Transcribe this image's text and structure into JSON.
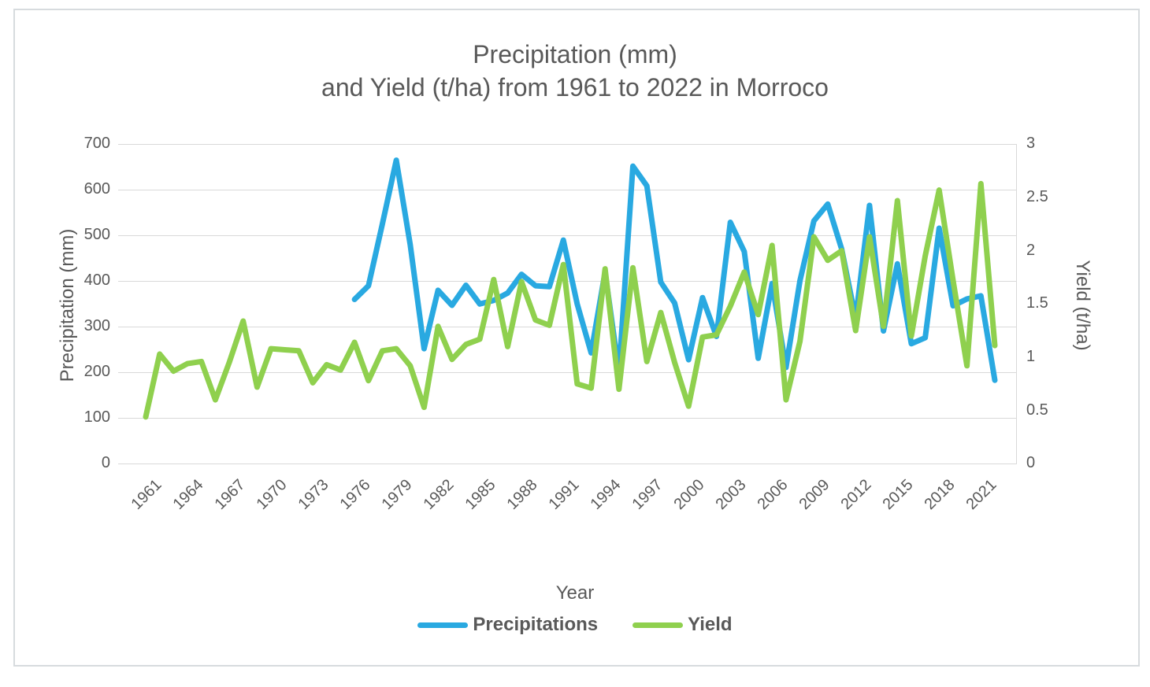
{
  "title": {
    "line1": "Precipitation (mm)",
    "line2": "and Yield (t/ha) from 1961 to 2022 in Morroco"
  },
  "colors": {
    "precipitation_blue": "#29a9e1",
    "yield_green": "#8fd04e",
    "gridline_gray": "#d9d9d9",
    "text_gray": "#595959"
  },
  "chart_data": {
    "type": "line",
    "title": "Precipitation (mm) and Yield (t/ha) from 1961 to 2022 in Morroco",
    "x_label": "Year",
    "grid": "horizontal",
    "legend_position": "bottom",
    "x": [
      1961,
      1962,
      1963,
      1964,
      1965,
      1966,
      1967,
      1968,
      1969,
      1970,
      1971,
      1972,
      1973,
      1974,
      1975,
      1976,
      1977,
      1978,
      1979,
      1980,
      1981,
      1982,
      1983,
      1984,
      1985,
      1986,
      1987,
      1988,
      1989,
      1990,
      1991,
      1992,
      1993,
      1994,
      1995,
      1996,
      1997,
      1998,
      1999,
      2000,
      2001,
      2002,
      2003,
      2004,
      2005,
      2006,
      2007,
      2008,
      2009,
      2010,
      2011,
      2012,
      2013,
      2014,
      2015,
      2016,
      2017,
      2018,
      2019,
      2020,
      2021,
      2022
    ],
    "x_tick_labels": [
      "1961",
      "1964",
      "1967",
      "1970",
      "1973",
      "1976",
      "1979",
      "1982",
      "1985",
      "1988",
      "1991",
      "1994",
      "1997",
      "2000",
      "2003",
      "2006",
      "2009",
      "2012",
      "2015",
      "2018",
      "2021"
    ],
    "left_axis": {
      "title": "Precipitation (mm)",
      "min": 0,
      "max": 700,
      "step": 100,
      "tick_labels": [
        "0",
        "100",
        "200",
        "300",
        "400",
        "500",
        "600",
        "700"
      ]
    },
    "right_axis": {
      "title": "Yield (t/ha)",
      "min": 0,
      "max": 3,
      "step": 0.5,
      "tick_labels": [
        "0",
        "0.5",
        "1",
        "1.5",
        "2",
        "2.5",
        "3"
      ]
    },
    "series": [
      {
        "name": "Precipitations",
        "axis": "left",
        "color": "#29a9e1",
        "values": [
          null,
          null,
          null,
          null,
          null,
          null,
          null,
          null,
          null,
          null,
          null,
          null,
          null,
          null,
          null,
          360,
          390,
          525,
          665,
          480,
          252,
          380,
          347,
          391,
          350,
          358,
          374,
          415,
          390,
          388,
          490,
          350,
          243,
          420,
          200,
          652,
          609,
          398,
          352,
          228,
          364,
          279,
          529,
          465,
          231,
          395,
          211,
          401,
          532,
          569,
          470,
          318,
          566,
          291,
          438,
          263,
          276,
          516,
          346,
          361,
          368,
          183
        ]
      },
      {
        "name": "Yield",
        "axis": "right",
        "color": "#8fd04e",
        "values": [
          0.44,
          1.03,
          0.87,
          0.94,
          0.96,
          0.6,
          0.95,
          1.34,
          0.72,
          1.08,
          1.07,
          1.06,
          0.76,
          0.93,
          0.88,
          1.14,
          0.78,
          1.06,
          1.08,
          0.92,
          0.53,
          1.29,
          0.98,
          1.12,
          1.17,
          1.73,
          1.1,
          1.71,
          1.35,
          1.3,
          1.87,
          0.75,
          0.71,
          1.83,
          0.7,
          1.84,
          0.96,
          1.42,
          0.95,
          0.54,
          1.19,
          1.21,
          1.48,
          1.8,
          1.4,
          2.05,
          0.6,
          1.15,
          2.13,
          1.91,
          2.0,
          1.25,
          2.13,
          1.29,
          2.47,
          1.2,
          1.95,
          2.57,
          1.72,
          0.92,
          2.63,
          1.11
        ]
      }
    ],
    "legend": [
      {
        "label": "Precipitations",
        "color": "#29a9e1"
      },
      {
        "label": "Yield",
        "color": "#8fd04e"
      }
    ]
  }
}
